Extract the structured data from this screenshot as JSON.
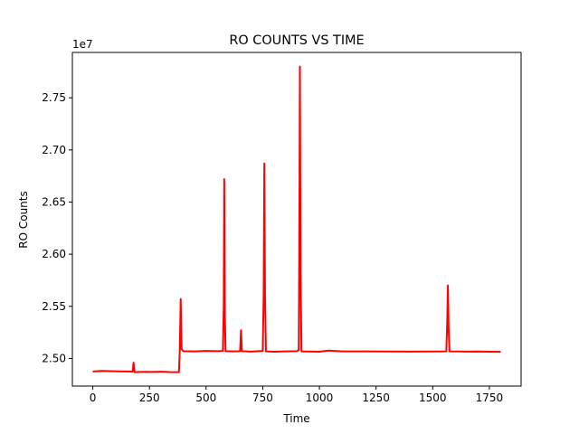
{
  "chart_data": {
    "type": "line",
    "title": "RO COUNTS VS TIME",
    "xlabel": "Time",
    "ylabel": "RO Counts",
    "y_offset_label": "1e7",
    "y_multiplier": 10000000,
    "xlim": [
      -90,
      1890
    ],
    "ylim": [
      2.4735,
      2.7935
    ],
    "xticks": [
      0,
      250,
      500,
      750,
      1000,
      1250,
      1500,
      1750
    ],
    "xtick_labels": [
      "0",
      "250",
      "500",
      "750",
      "1000",
      "1250",
      "1500",
      "1750"
    ],
    "yticks": [
      2.5,
      2.55,
      2.6,
      2.65,
      2.7,
      2.75
    ],
    "ytick_labels": [
      "2.50",
      "2.55",
      "2.60",
      "2.65",
      "2.70",
      "2.75"
    ],
    "grid": false,
    "line_color": "#ff0000",
    "series": [
      {
        "points": [
          [
            0,
            2.4875
          ],
          [
            40,
            2.488
          ],
          [
            80,
            2.4878
          ],
          [
            120,
            2.4876
          ],
          [
            160,
            2.4875
          ],
          [
            176,
            2.4874
          ],
          [
            180,
            2.496
          ],
          [
            184,
            2.4868
          ],
          [
            220,
            2.4872
          ],
          [
            260,
            2.487
          ],
          [
            300,
            2.4873
          ],
          [
            340,
            2.4869
          ],
          [
            380,
            2.4868
          ],
          [
            384,
            2.5085
          ],
          [
            388,
            2.557
          ],
          [
            392,
            2.509
          ],
          [
            400,
            2.507
          ],
          [
            450,
            2.5068
          ],
          [
            500,
            2.5072
          ],
          [
            550,
            2.507
          ],
          [
            574,
            2.5072
          ],
          [
            578,
            2.55
          ],
          [
            580,
            2.672
          ],
          [
            583,
            2.54
          ],
          [
            586,
            2.507
          ],
          [
            620,
            2.5068
          ],
          [
            650,
            2.507
          ],
          [
            654,
            2.527
          ],
          [
            658,
            2.507
          ],
          [
            700,
            2.5066
          ],
          [
            730,
            2.507
          ],
          [
            750,
            2.5072
          ],
          [
            754,
            2.56
          ],
          [
            757,
            2.687
          ],
          [
            760,
            2.56
          ],
          [
            764,
            2.5068
          ],
          [
            800,
            2.5065
          ],
          [
            850,
            2.5068
          ],
          [
            900,
            2.507
          ],
          [
            909,
            2.508
          ],
          [
            912,
            2.65
          ],
          [
            914,
            2.78
          ],
          [
            917,
            2.58
          ],
          [
            921,
            2.5068
          ],
          [
            1000,
            2.5065
          ],
          [
            1040,
            2.5075
          ],
          [
            1100,
            2.5068
          ],
          [
            1200,
            2.5068
          ],
          [
            1300,
            2.5067
          ],
          [
            1400,
            2.5066
          ],
          [
            1500,
            2.5067
          ],
          [
            1560,
            2.5068
          ],
          [
            1564,
            2.535
          ],
          [
            1567,
            2.57
          ],
          [
            1570,
            2.53
          ],
          [
            1574,
            2.5068
          ],
          [
            1650,
            2.5066
          ],
          [
            1700,
            2.5067
          ],
          [
            1750,
            2.5065
          ],
          [
            1800,
            2.5063
          ]
        ]
      }
    ]
  }
}
